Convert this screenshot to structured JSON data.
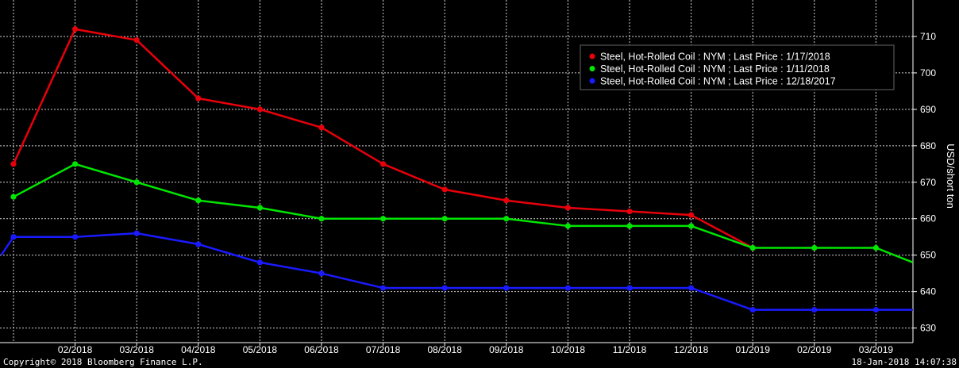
{
  "chart_data": {
    "type": "line",
    "ylabel": "USD/short ton",
    "ylim": [
      626,
      720
    ],
    "y_ticks": [
      630,
      640,
      650,
      660,
      670,
      680,
      690,
      700,
      710
    ],
    "x_labels": [
      "02/2018",
      "03/2018",
      "04/2018",
      "05/2018",
      "06/2018",
      "07/2018",
      "08/2018",
      "09/2018",
      "10/2018",
      "11/2018",
      "12/2018",
      "01/2019",
      "02/2019",
      "03/2019"
    ],
    "grid": true,
    "legend_position": "top-right",
    "series": [
      {
        "name": "Steel, Hot-Rolled Coil : NYM ; Last Price : 1/17/2018",
        "color": "#e8000b",
        "points": [
          [
            0,
            675
          ],
          [
            1,
            712
          ],
          [
            2,
            709
          ],
          [
            3,
            693
          ],
          [
            4,
            690
          ],
          [
            5,
            685
          ],
          [
            6,
            675
          ],
          [
            7,
            668
          ],
          [
            8,
            665
          ],
          [
            9,
            663
          ],
          [
            10,
            662
          ],
          [
            11,
            661
          ],
          [
            12,
            652
          ]
        ]
      },
      {
        "name": "Steel, Hot-Rolled Coil : NYM ; Last Price : 1/11/2018",
        "color": "#00e600",
        "points": [
          [
            0,
            666
          ],
          [
            1,
            675
          ],
          [
            2,
            670
          ],
          [
            3,
            665
          ],
          [
            4,
            663
          ],
          [
            5,
            660
          ],
          [
            6,
            660
          ],
          [
            7,
            660
          ],
          [
            8,
            660
          ],
          [
            9,
            658
          ],
          [
            10,
            658
          ],
          [
            11,
            658
          ],
          [
            12,
            652
          ],
          [
            13,
            652
          ],
          [
            14,
            652
          ],
          [
            14.6,
            648
          ]
        ]
      },
      {
        "name": "Steel, Hot-Rolled Coil : NYM ; Last Price : 12/18/2017",
        "color": "#1a1aff",
        "points": [
          [
            -0.2,
            650
          ],
          [
            0,
            655
          ],
          [
            1,
            655
          ],
          [
            2,
            656
          ],
          [
            3,
            653
          ],
          [
            4,
            648
          ],
          [
            5,
            645
          ],
          [
            6,
            641
          ],
          [
            7,
            641
          ],
          [
            8,
            641
          ],
          [
            9,
            641
          ],
          [
            10,
            641
          ],
          [
            11,
            641
          ],
          [
            12,
            635
          ],
          [
            13,
            635
          ],
          [
            14,
            635
          ],
          [
            14.6,
            635
          ]
        ]
      }
    ]
  },
  "footer": {
    "copyright": "Copyright© 2018 Bloomberg Finance L.P.",
    "timestamp": "18-Jan-2018 14:07:38"
  }
}
